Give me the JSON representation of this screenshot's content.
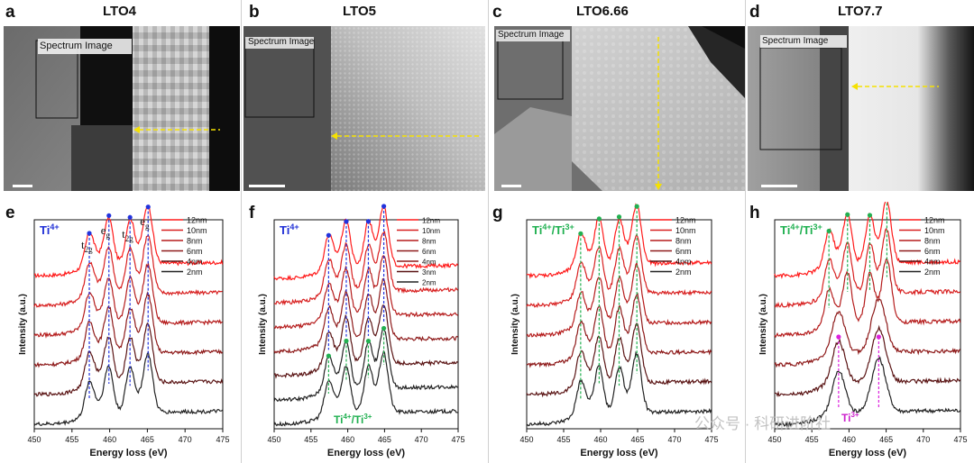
{
  "panels": [
    {
      "letter_img": "a",
      "title": "LTO4",
      "spectrum_label": "Spectrum Image",
      "letter_plot": "e",
      "ion_label": "Ti",
      "ion_sup": "4+",
      "ion_color": "#1f2fd6",
      "peak_labels": [
        {
          "base": "t",
          "sub": "2g"
        },
        {
          "base": "e",
          "sub": "g"
        },
        {
          "base": "t",
          "sub": "2g"
        },
        {
          "base": "e",
          "sub": "g"
        }
      ],
      "legend": [
        "12nm",
        "10nm",
        "8nm",
        "6nm",
        "4nm",
        "2nm"
      ],
      "arrow": "horizontal",
      "bottom_label": null
    },
    {
      "letter_img": "b",
      "title": "LTO5",
      "spectrum_label": "Spectrum Image",
      "letter_plot": "f",
      "ion_label": "Ti",
      "ion_sup": "4+",
      "ion_color": "#1f2fd6",
      "peak_labels": [],
      "legend": [
        "12nm",
        "10nm",
        "8nm",
        "6nm",
        "4nm",
        "3nm",
        "2nm"
      ],
      "arrow": "horizontal",
      "bottom_label": {
        "a": "Ti",
        "asup": "4+",
        "b": "Ti",
        "bsup": "3+",
        "color": "#1fb050"
      }
    },
    {
      "letter_img": "c",
      "title": "LTO6.66",
      "spectrum_label": "Spectrum Image",
      "letter_plot": "g",
      "ion_label": "Ti",
      "ion_sup": "4+",
      "ion_label2": "Ti",
      "ion_sup2": "3+",
      "ion_color": "#1fb050",
      "peak_labels": [],
      "legend": [
        "12nm",
        "10nm",
        "8nm",
        "6nm",
        "4nm",
        "2nm"
      ],
      "arrow": "vertical",
      "bottom_label": null
    },
    {
      "letter_img": "d",
      "title": "LTO7.7",
      "spectrum_label": "Spectrum Image",
      "letter_plot": "h",
      "ion_label": "Ti",
      "ion_sup": "4+",
      "ion_label2": "Ti",
      "ion_sup2": "3+",
      "ion_color": "#1fb050",
      "peak_labels": [],
      "legend": [
        "12nm",
        "10nm",
        "8nm",
        "6nm",
        "4nm",
        "2nm"
      ],
      "arrow": "horizontal-left",
      "bottom_label": {
        "a": "Ti",
        "asup": "3+",
        "color": "#cc22cc"
      }
    }
  ],
  "axis": {
    "xlabel": "Energy loss (eV)",
    "ylabel": "Intensity (a.u.)",
    "xticks": [
      "450",
      "455",
      "460",
      "465",
      "470",
      "475"
    ]
  },
  "watermark": "公众号 · 科研进阶社",
  "colors": {
    "series": [
      "#ff1a1a",
      "#d82020",
      "#b51c1c",
      "#8e1a1a",
      "#5a1414",
      "#222222"
    ],
    "blue_dash": "#2233dd",
    "green_dash": "#22b050",
    "magenta_dash": "#dd22dd",
    "arrow_yellow": "#f5e100"
  },
  "chart_data": [
    {
      "type": "line",
      "panel": "e",
      "xlabel": "Energy loss (eV)",
      "ylabel": "Intensity (a.u.)",
      "xlim": [
        450,
        475
      ],
      "series": [
        {
          "name": "12nm"
        },
        {
          "name": "10nm"
        },
        {
          "name": "8nm"
        },
        {
          "name": "6nm"
        },
        {
          "name": "4nm"
        },
        {
          "name": "2nm"
        }
      ],
      "peaks": [
        457.3,
        459.9,
        462.7,
        465.1
      ]
    },
    {
      "type": "line",
      "panel": "f",
      "xlabel": "Energy loss (eV)",
      "ylabel": "Intensity (a.u.)",
      "xlim": [
        450,
        475
      ],
      "series": [
        {
          "name": "12nm"
        },
        {
          "name": "10nm"
        },
        {
          "name": "8nm"
        },
        {
          "name": "6nm"
        },
        {
          "name": "4nm"
        },
        {
          "name": "3nm"
        },
        {
          "name": "2nm"
        }
      ],
      "peaks": [
        457.4,
        459.8,
        462.8,
        464.9
      ]
    },
    {
      "type": "line",
      "panel": "g",
      "xlabel": "Energy loss (eV)",
      "ylabel": "Intensity (a.u.)",
      "xlim": [
        450,
        475
      ],
      "series": [
        {
          "name": "12nm"
        },
        {
          "name": "10nm"
        },
        {
          "name": "8nm"
        },
        {
          "name": "6nm"
        },
        {
          "name": "4nm"
        },
        {
          "name": "2nm"
        }
      ],
      "peaks": [
        457.3,
        459.8,
        462.5,
        464.9
      ]
    },
    {
      "type": "line",
      "panel": "h",
      "xlabel": "Energy loss (eV)",
      "ylabel": "Intensity (a.u.)",
      "xlim": [
        450,
        475
      ],
      "series": [
        {
          "name": "12nm"
        },
        {
          "name": "10nm"
        },
        {
          "name": "8nm"
        },
        {
          "name": "6nm"
        },
        {
          "name": "4nm"
        },
        {
          "name": "2nm"
        }
      ],
      "peaks": [
        457.3,
        459.8,
        462.8,
        465.1
      ]
    }
  ]
}
